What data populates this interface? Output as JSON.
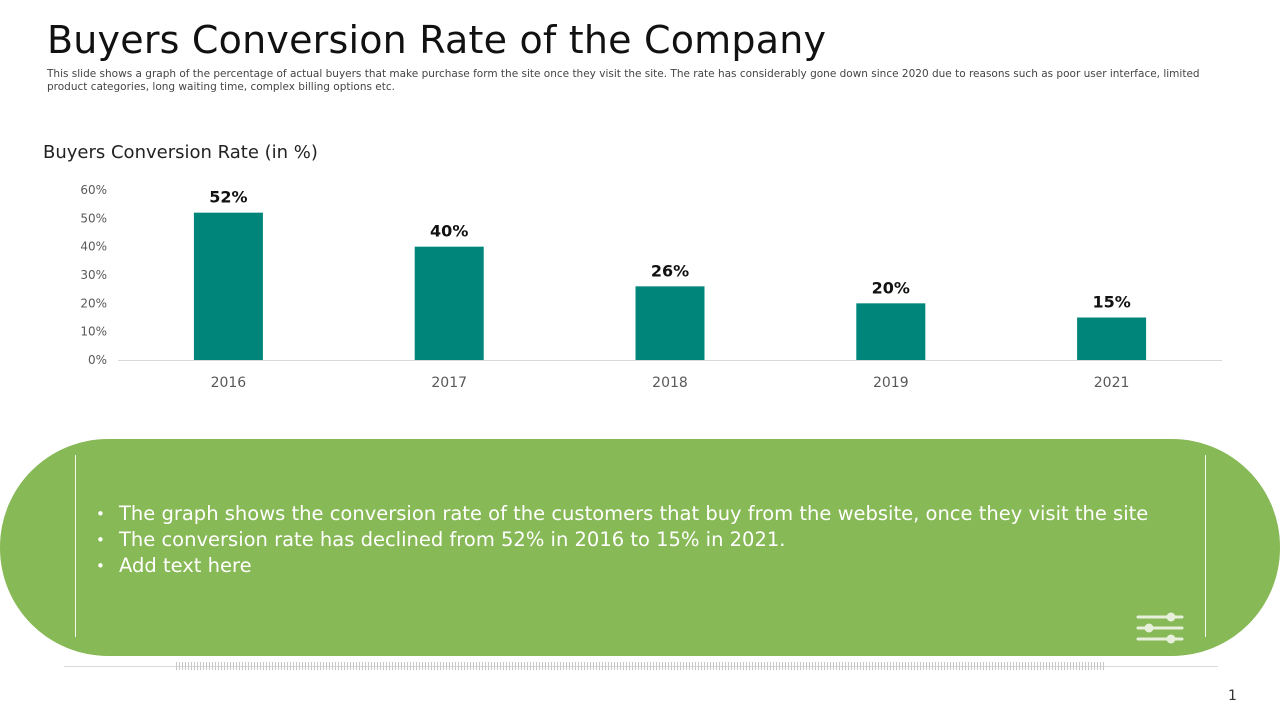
{
  "slide": {
    "title": "Buyers Conversion Rate of the Company",
    "subtitle": "This slide shows a graph of the percentage of actual buyers that make purchase form the site once they visit the site. The rate has considerably gone down since 2020 due to reasons such as poor user interface, limited product categories, long waiting time, complex billing options etc.",
    "page_number": "1"
  },
  "chart_data": {
    "type": "bar",
    "title": "Buyers Conversion Rate (in %)",
    "categories": [
      "2016",
      "2017",
      "2018",
      "2019",
      "2021"
    ],
    "values": [
      52,
      40,
      26,
      20,
      15
    ],
    "data_labels": [
      "52%",
      "40%",
      "26%",
      "20%",
      "15%"
    ],
    "yticks": [
      0,
      10,
      20,
      30,
      40,
      50,
      60
    ],
    "ytick_labels": [
      "0%",
      "10%",
      "20%",
      "30%",
      "40%",
      "50%",
      "60%"
    ],
    "ylim": [
      0,
      60
    ],
    "xlabel": "",
    "ylabel": "",
    "grid": false,
    "legend": "none",
    "bar_color": "#00857b"
  },
  "callout": {
    "bullets": [
      "The graph shows the conversion rate of the customers that buy from the website, once they visit the site",
      "The conversion rate has declined from 52% in 2016 to 15% in 2021.",
      "Add text here"
    ],
    "icon": "settings-sliders-icon"
  },
  "colors": {
    "bar": "#00857b",
    "callout_background": "#87b956",
    "text": "#111111"
  }
}
